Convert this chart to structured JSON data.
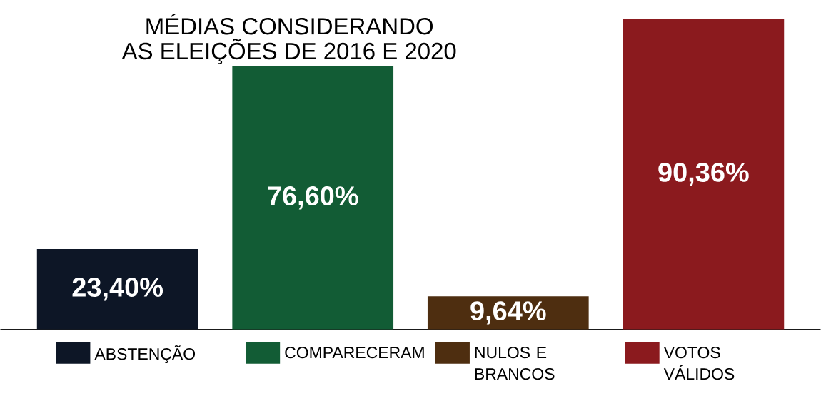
{
  "chart_data": {
    "type": "bar",
    "title": "MÉDIAS CONSIDERANDO",
    "subtitle": "AS ELEIÇÕES DE 2016 E 2020",
    "categories": [
      null,
      null,
      null,
      null
    ],
    "series": [
      {
        "name": "ABSTENÇÃO",
        "color": "#0d1626",
        "values": [
          23.4,
          null,
          null,
          null
        ],
        "value_labels": [
          "23,40%",
          null,
          null,
          null
        ]
      },
      {
        "name": "COMPARECERAM",
        "color": "#125c35",
        "values": [
          null,
          76.6,
          null,
          null
        ],
        "value_labels": [
          null,
          "76,60%",
          null,
          null
        ]
      },
      {
        "name": "NULOS E BRANCOS",
        "color": "#4e2e10",
        "values": [
          null,
          null,
          9.64,
          null
        ],
        "value_labels": [
          null,
          null,
          "9,64%",
          null
        ]
      },
      {
        "name": "VOTOS VÁLIDOS",
        "color": "#8b1a1e",
        "values": [
          null,
          null,
          null,
          90.36
        ],
        "value_labels": [
          null,
          null,
          null,
          "90,36%"
        ]
      }
    ],
    "stacked": true,
    "legend": "bottom"
  }
}
